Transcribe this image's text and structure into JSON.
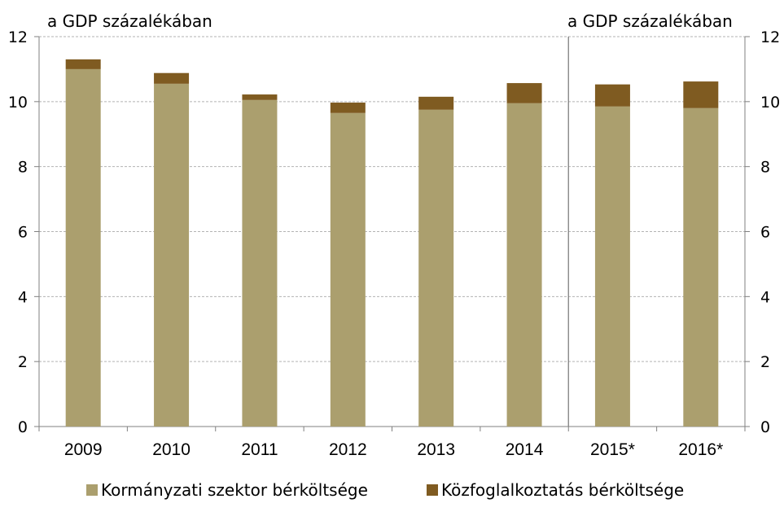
{
  "chart_data": {
    "type": "bar",
    "stacked": true,
    "unit_label_left": "a GDP százalékában",
    "unit_label_right": "a GDP százalékában",
    "categories": [
      "2009",
      "2010",
      "2011",
      "2012",
      "2013",
      "2014",
      "2015*",
      "2016*"
    ],
    "series": [
      {
        "name": "Kormányzati szektor bérköltsége",
        "values": [
          11.0,
          10.55,
          10.05,
          9.65,
          9.75,
          9.95,
          9.85,
          9.8
        ],
        "color": "#ab9f6e"
      },
      {
        "name": "Közfoglalkoztatás bérköltsége",
        "values": [
          0.3,
          0.33,
          0.17,
          0.32,
          0.4,
          0.62,
          0.68,
          0.82
        ],
        "color": "#7f5b21"
      }
    ],
    "ylim": [
      0,
      12
    ],
    "yticks": [
      "0",
      "2",
      "4",
      "6",
      "8",
      "10",
      "12"
    ],
    "grid": true,
    "forecast_divider_after": "2014",
    "legend_position": "bottom"
  }
}
